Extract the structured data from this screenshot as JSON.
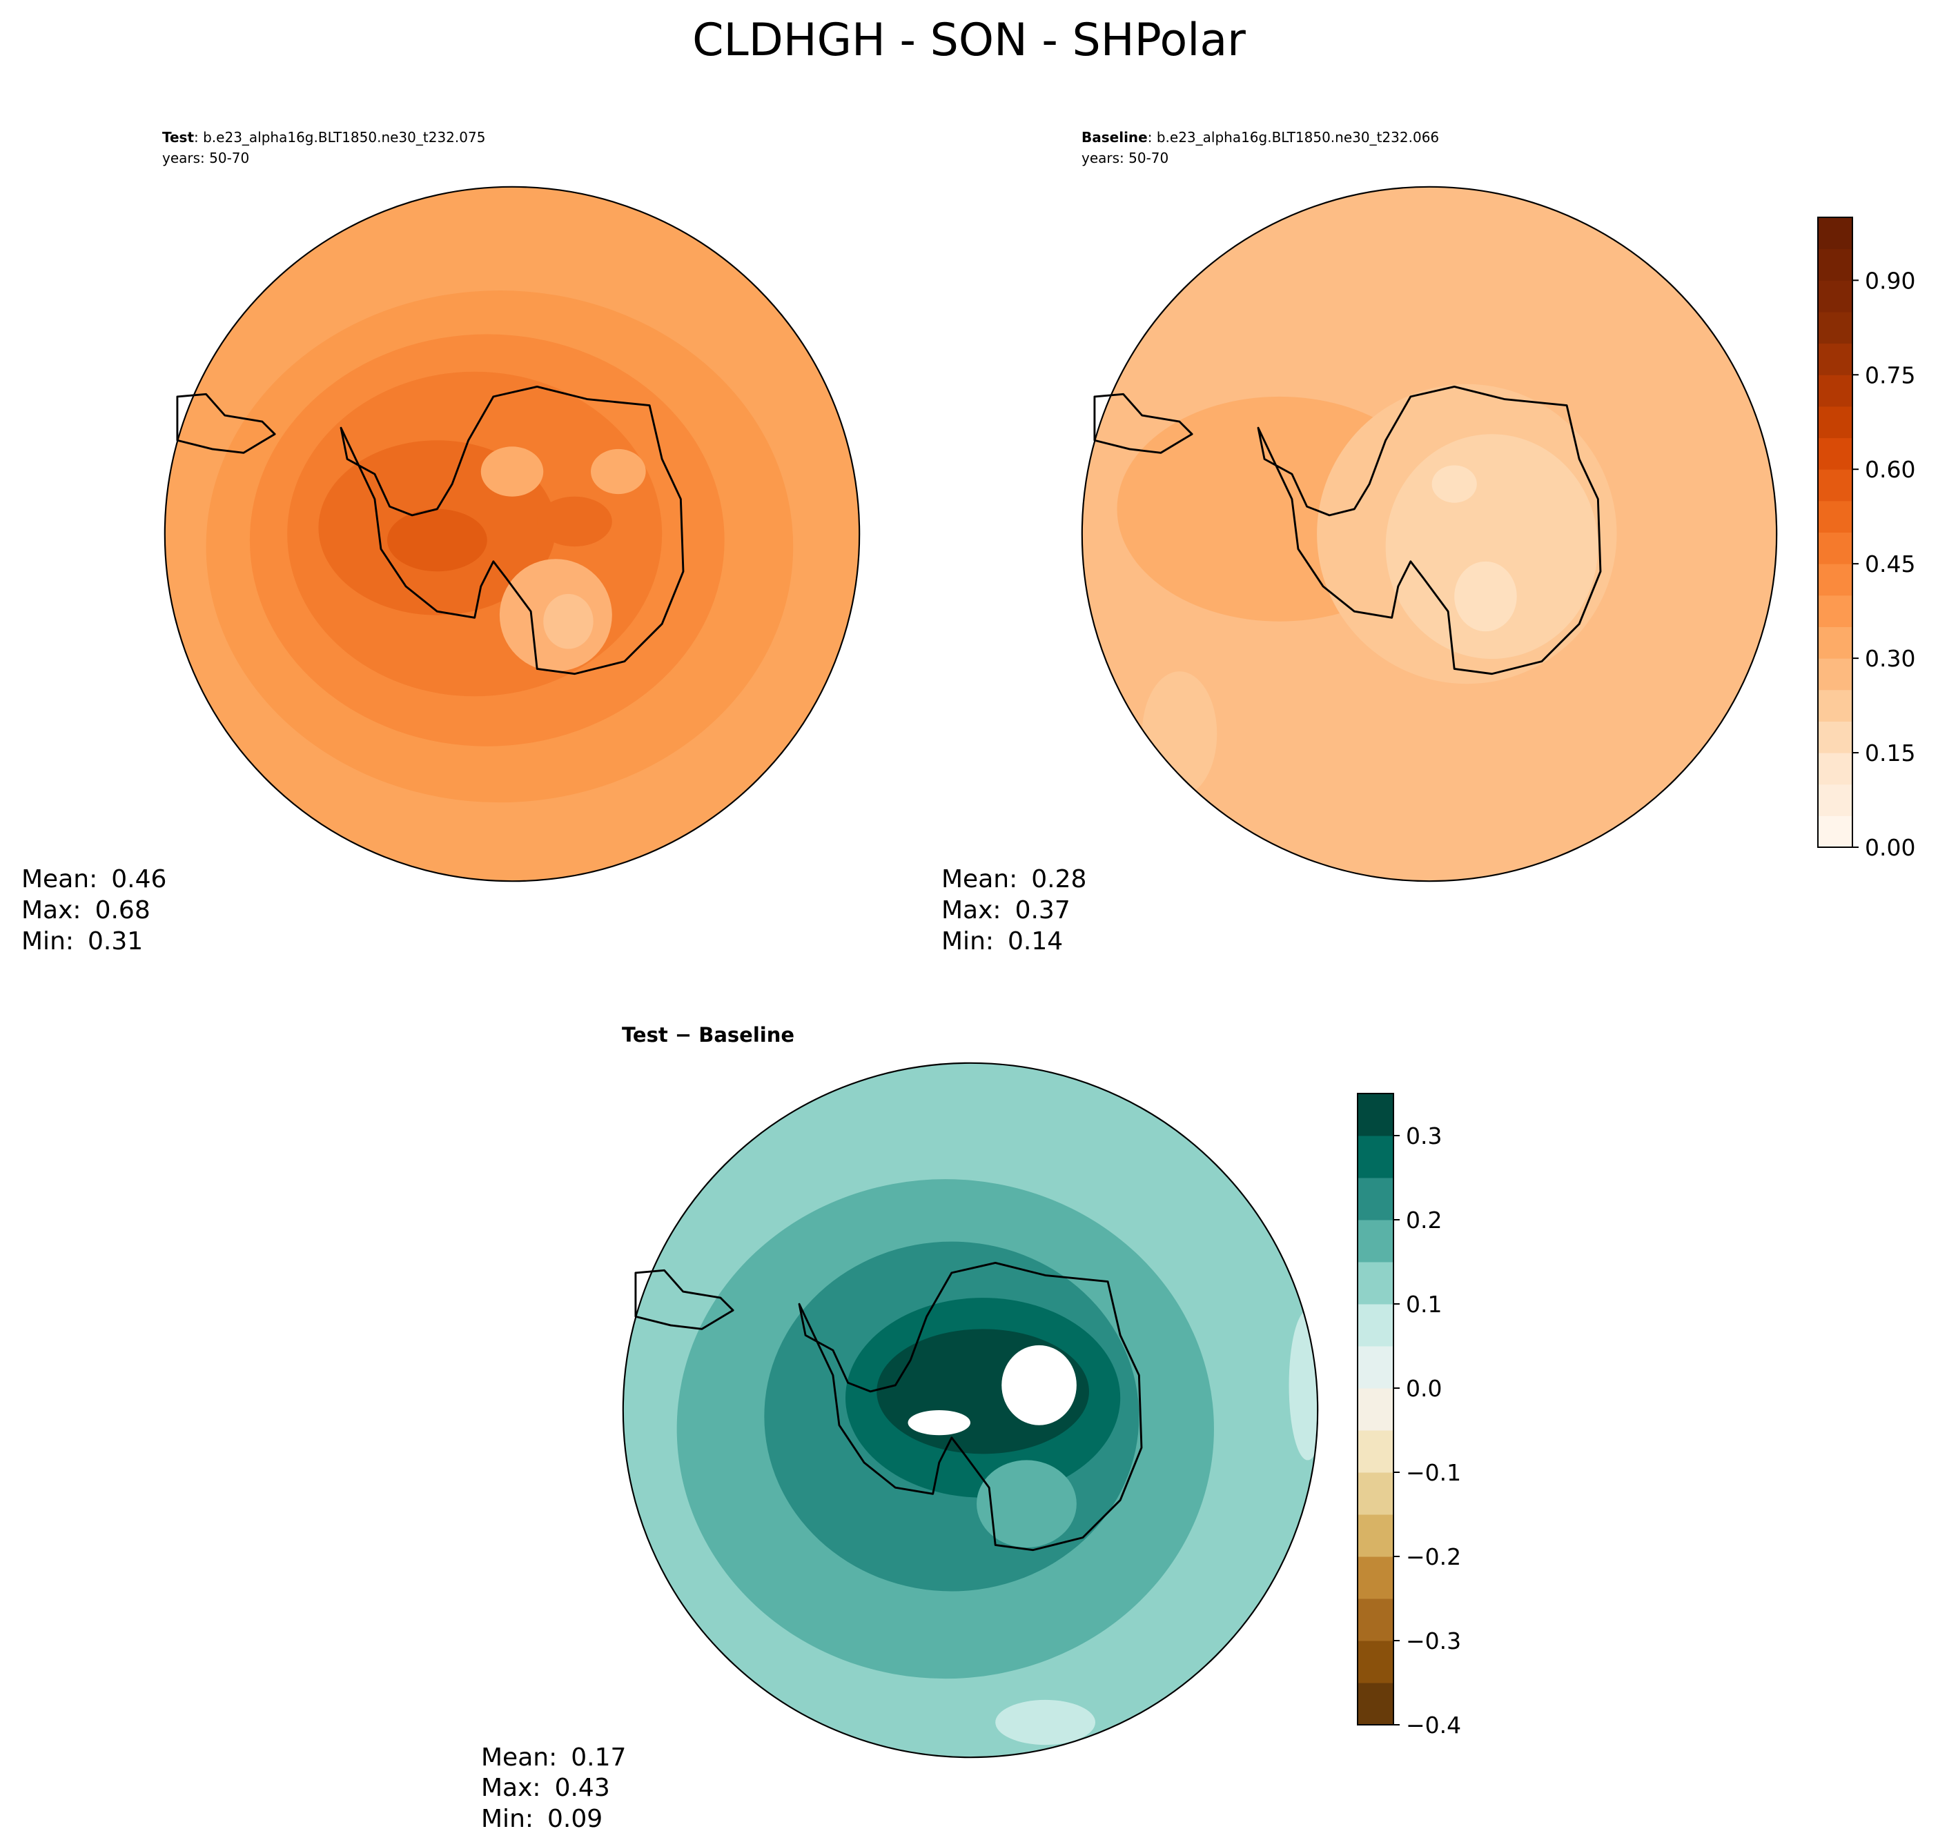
{
  "title": "CLDHGH - SON - SHPolar",
  "panels": [
    {
      "label": "Test",
      "case": ": b.e23_alpha16g.BLT1850.ne30_t232.075",
      "years": "years: 50-70",
      "stats": [
        {
          "label": "Mean:",
          "value": 0.46
        },
        {
          "label": "Max:",
          "value": 0.68
        },
        {
          "label": "Min:",
          "value": 0.31
        }
      ]
    },
    {
      "label": "Baseline",
      "case": ": b.e23_alpha16g.BLT1850.ne30_t232.066",
      "years": "years: 50-70",
      "stats": [
        {
          "label": "Mean:",
          "value": 0.28
        },
        {
          "label": "Max:",
          "value": 0.37
        },
        {
          "label": "Min:",
          "value": 0.14
        }
      ]
    },
    {
      "label": "Test − Baseline",
      "stats": [
        {
          "label": "Mean:",
          "value": 0.17
        },
        {
          "label": "Max:",
          "value": 0.43
        },
        {
          "label": "Min:",
          "value": 0.09
        }
      ]
    }
  ],
  "colorbars": [
    {
      "lim": [
        0,
        1.0
      ],
      "ticks": [
        {
          "value": 0,
          "label": "0.00"
        },
        {
          "value": 0.15,
          "label": "0.15"
        },
        {
          "value": 0.3,
          "label": "0.30"
        },
        {
          "value": 0.45,
          "label": "0.45"
        },
        {
          "value": 0.6,
          "label": "0.60"
        },
        {
          "value": 0.75,
          "label": "0.75"
        },
        {
          "value": 0.9,
          "label": "0.90"
        }
      ],
      "colors": [
        "#fff5eb",
        "#feeddc",
        "#fee6ce",
        "#fdd9b4",
        "#fdcb9a",
        "#fdba7f",
        "#fdab67",
        "#fd9a50",
        "#fa8a3d",
        "#f57a2c",
        "#ee6a1c",
        "#e45a11",
        "#d94b07",
        "#c64102",
        "#b33903",
        "#9e3304",
        "#8a2d04",
        "#7f2704",
        "#752303",
        "#6a1f03"
      ]
    },
    {
      "lim": [
        -0.4,
        0.35
      ],
      "ticks": [
        {
          "value": -0.4,
          "label": "−0.4"
        },
        {
          "value": -0.3,
          "label": "−0.3"
        },
        {
          "value": -0.2,
          "label": "−0.2"
        },
        {
          "value": -0.1,
          "label": "−0.1"
        },
        {
          "value": 0,
          "label": "0.0"
        },
        0.1,
        0.2,
        0.3
      ],
      "colors": [
        "#673b0a",
        "#8a510c",
        "#a76b20",
        "#c18936",
        "#d8b365",
        "#e7cf94",
        "#f3e5c0",
        "#f5f0e4",
        "#e4f1ef",
        "#c7eae5",
        "#90d2c8",
        "#5ab2a7",
        "#2a8d84",
        "#016c5f",
        "#01493e"
      ]
    }
  ]
}
